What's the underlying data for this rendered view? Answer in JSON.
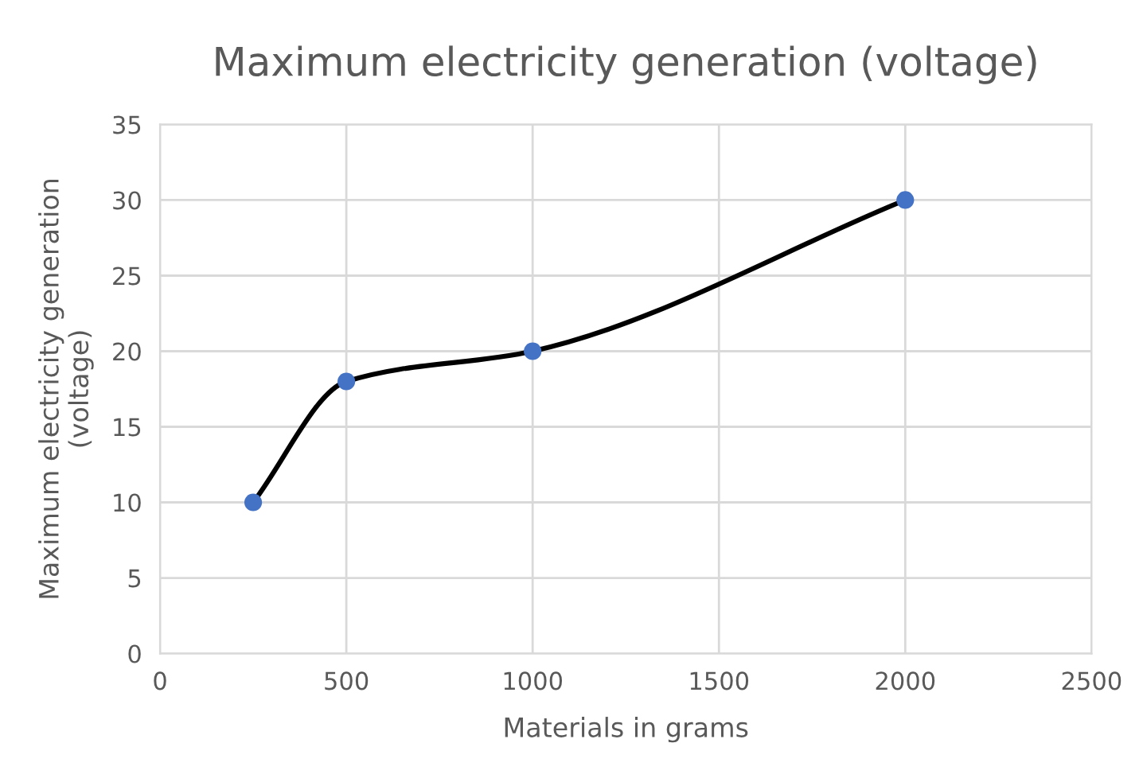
{
  "chart_data": {
    "type": "line",
    "title": "Maximum electricity generation (voltage)",
    "xlabel": "Materials in grams",
    "ylabel": "Maximum electricity generation\n(voltage)",
    "x": [
      250,
      500,
      1000,
      2000
    ],
    "series": [
      {
        "color": "#000000",
        "values": [
          10,
          18,
          20,
          30
        ]
      },
      {
        "type": "scatter",
        "color": "#4472c4",
        "values": [
          10,
          18,
          20,
          30
        ]
      }
    ],
    "xlim": [
      0,
      2500
    ],
    "xticks": [
      0,
      500,
      1000,
      1500,
      2000,
      2500
    ],
    "ylim": [
      0,
      35
    ],
    "yticks": [
      0,
      5,
      10,
      15,
      20,
      25,
      30,
      35
    ],
    "grid": true,
    "line_style": "solid"
  }
}
